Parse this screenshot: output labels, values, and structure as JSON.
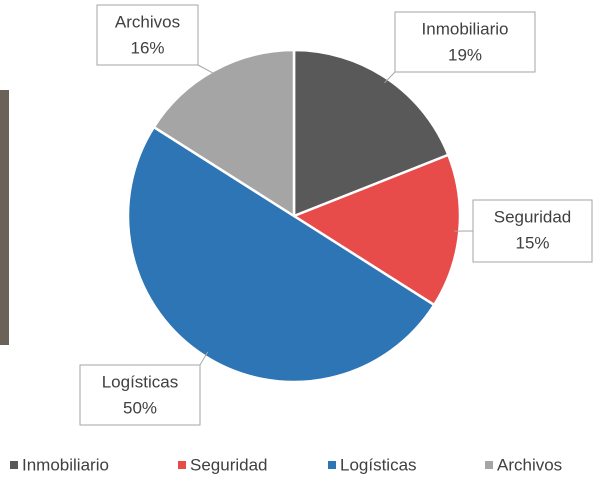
{
  "chart_data": {
    "type": "pie",
    "categories": [
      "Inmobiliario",
      "Seguridad",
      "Logísticas",
      "Archivos"
    ],
    "values": [
      19,
      15,
      50,
      16
    ],
    "value_labels": [
      "19%",
      "15%",
      "50%",
      "16%"
    ],
    "colors": [
      "#595959",
      "#e84c4a",
      "#2e75b6",
      "#a5a5a5"
    ],
    "legend": "bottom"
  }
}
